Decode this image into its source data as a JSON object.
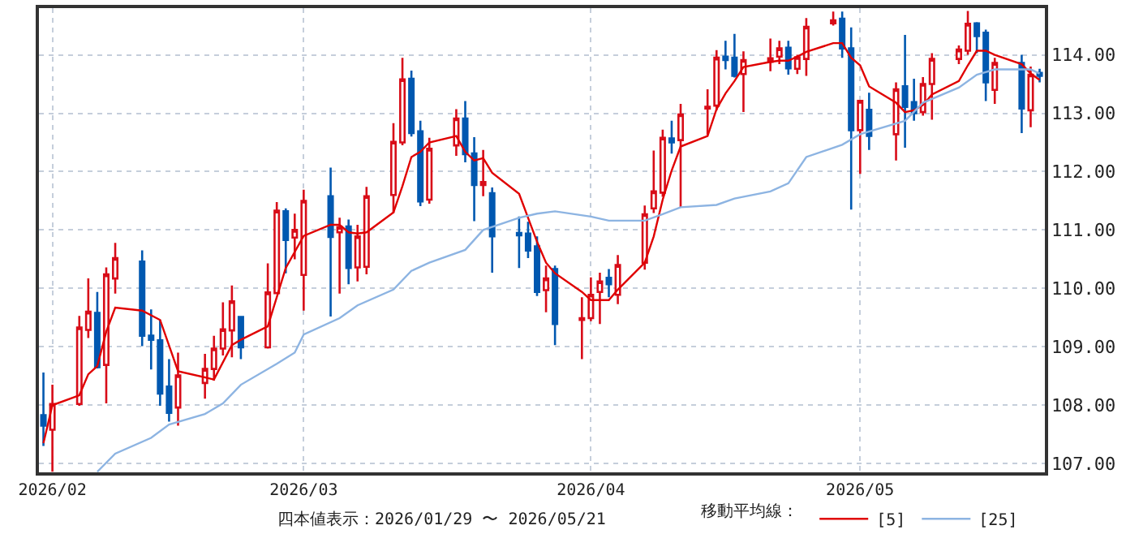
{
  "chart_data": {
    "type": "candlestick",
    "annotations": [
      "四本値表示：2026/01/29 〜 2026/05/21"
    ],
    "legend_title": "移動平均線：",
    "x": [
      "2026-01-29",
      "2026-01-30",
      "2026-02-02",
      "2026-02-03",
      "2026-02-04",
      "2026-02-05",
      "2026-02-06",
      "2026-02-09",
      "2026-02-10",
      "2026-02-11",
      "2026-02-12",
      "2026-02-13",
      "2026-02-16",
      "2026-02-17",
      "2026-02-18",
      "2026-02-19",
      "2026-02-20",
      "2026-02-23",
      "2026-02-24",
      "2026-02-25",
      "2026-02-26",
      "2026-02-27",
      "2026-03-02",
      "2026-03-03",
      "2026-03-04",
      "2026-03-05",
      "2026-03-06",
      "2026-03-09",
      "2026-03-10",
      "2026-03-11",
      "2026-03-12",
      "2026-03-13",
      "2026-03-16",
      "2026-03-17",
      "2026-03-18",
      "2026-03-19",
      "2026-03-20",
      "2026-03-23",
      "2026-03-24",
      "2026-03-25",
      "2026-03-26",
      "2026-03-27",
      "2026-03-30",
      "2026-03-31",
      "2026-04-01",
      "2026-04-02",
      "2026-04-03",
      "2026-04-06",
      "2026-04-07",
      "2026-04-08",
      "2026-04-09",
      "2026-04-10",
      "2026-04-13",
      "2026-04-14",
      "2026-04-15",
      "2026-04-16",
      "2026-04-17",
      "2026-04-20",
      "2026-04-21",
      "2026-04-22",
      "2026-04-23",
      "2026-04-24",
      "2026-04-27",
      "2026-04-28",
      "2026-04-29",
      "2026-04-30",
      "2026-05-01",
      "2026-05-04",
      "2026-05-05",
      "2026-05-06",
      "2026-05-07",
      "2026-05-08",
      "2026-05-11",
      "2026-05-12",
      "2026-05-13",
      "2026-05-14",
      "2026-05-15",
      "2026-05-18",
      "2026-05-19",
      "2026-05-20"
    ],
    "ohlc": [
      [
        107.83,
        108.56,
        107.3,
        107.65
      ],
      [
        107.58,
        108.35,
        106.86,
        108.02
      ],
      [
        108.02,
        109.53,
        107.99,
        109.33
      ],
      [
        109.29,
        110.17,
        109.15,
        109.6
      ],
      [
        109.58,
        109.94,
        108.63,
        108.65
      ],
      [
        108.69,
        110.36,
        108.03,
        110.24
      ],
      [
        110.17,
        110.78,
        109.91,
        110.52
      ],
      [
        110.46,
        110.65,
        109.01,
        109.19
      ],
      [
        109.19,
        109.64,
        108.61,
        109.12
      ],
      [
        109.11,
        109.46,
        107.99,
        108.2
      ],
      [
        108.32,
        108.79,
        107.72,
        107.87
      ],
      [
        107.96,
        108.9,
        107.65,
        108.51
      ],
      [
        108.38,
        108.88,
        108.11,
        108.62
      ],
      [
        108.62,
        109.19,
        108.42,
        108.97
      ],
      [
        108.97,
        109.76,
        108.85,
        109.3
      ],
      [
        109.28,
        110.05,
        108.82,
        109.78
      ],
      [
        109.51,
        109.53,
        108.79,
        108.99
      ],
      [
        108.99,
        110.43,
        108.97,
        109.93
      ],
      [
        109.92,
        111.48,
        109.9,
        111.33
      ],
      [
        111.32,
        111.37,
        110.26,
        110.83
      ],
      [
        110.87,
        111.28,
        110.5,
        111.0
      ],
      [
        110.23,
        111.69,
        109.62,
        111.5
      ],
      [
        111.58,
        112.07,
        109.52,
        110.88
      ],
      [
        110.96,
        111.21,
        109.91,
        111.05
      ],
      [
        111.06,
        111.18,
        110.07,
        110.35
      ],
      [
        110.36,
        111.09,
        110.12,
        110.89
      ],
      [
        110.37,
        111.74,
        110.24,
        111.58
      ],
      [
        111.6,
        112.83,
        111.29,
        112.51
      ],
      [
        112.5,
        113.95,
        112.45,
        113.58
      ],
      [
        113.59,
        113.73,
        112.6,
        112.66
      ],
      [
        112.69,
        112.87,
        111.41,
        111.49
      ],
      [
        111.52,
        112.58,
        111.45,
        112.39
      ],
      [
        112.45,
        113.07,
        112.27,
        112.91
      ],
      [
        112.91,
        113.21,
        112.16,
        112.3
      ],
      [
        112.31,
        112.59,
        111.15,
        111.77
      ],
      [
        111.77,
        112.37,
        111.58,
        111.82
      ],
      [
        111.63,
        111.73,
        110.27,
        110.89
      ],
      [
        110.95,
        111.23,
        110.35,
        110.91
      ],
      [
        110.94,
        111.14,
        110.52,
        110.65
      ],
      [
        110.72,
        110.89,
        109.87,
        109.94
      ],
      [
        109.97,
        110.39,
        109.59,
        110.17
      ],
      [
        110.33,
        110.39,
        109.03,
        109.39
      ],
      [
        109.46,
        109.85,
        108.79,
        109.49
      ],
      [
        109.49,
        110.19,
        109.44,
        109.89
      ],
      [
        109.94,
        110.27,
        109.39,
        110.12
      ],
      [
        110.18,
        110.33,
        109.85,
        110.07
      ],
      [
        109.89,
        110.57,
        109.73,
        110.4
      ],
      [
        110.44,
        111.42,
        110.32,
        111.27
      ],
      [
        111.37,
        112.36,
        111.29,
        111.66
      ],
      [
        111.64,
        112.72,
        111.57,
        112.58
      ],
      [
        112.57,
        112.87,
        112.31,
        112.5
      ],
      [
        112.54,
        113.16,
        111.39,
        112.98
      ],
      [
        113.08,
        113.41,
        112.63,
        113.11
      ],
      [
        113.13,
        114.08,
        113.05,
        113.95
      ],
      [
        113.97,
        114.24,
        113.75,
        113.91
      ],
      [
        113.95,
        114.36,
        113.61,
        113.64
      ],
      [
        113.67,
        114.06,
        113.02,
        113.91
      ],
      [
        113.88,
        114.28,
        113.72,
        113.94
      ],
      [
        113.97,
        114.24,
        113.84,
        114.11
      ],
      [
        114.12,
        114.24,
        113.66,
        113.77
      ],
      [
        113.76,
        114.0,
        113.67,
        113.96
      ],
      [
        113.93,
        114.63,
        113.64,
        114.48
      ],
      [
        114.54,
        114.74,
        114.5,
        114.59
      ],
      [
        114.62,
        114.74,
        113.95,
        114.11
      ],
      [
        114.11,
        114.47,
        111.35,
        112.71
      ],
      [
        112.71,
        113.21,
        111.96,
        113.21
      ],
      [
        113.06,
        113.35,
        112.37,
        112.61
      ],
      [
        112.64,
        113.53,
        112.19,
        113.41
      ],
      [
        113.46,
        114.34,
        112.41,
        113.11
      ],
      [
        113.19,
        113.59,
        112.87,
        113.0
      ],
      [
        113.02,
        113.62,
        112.96,
        113.5
      ],
      [
        113.5,
        114.03,
        112.89,
        113.93
      ],
      [
        113.93,
        114.16,
        113.84,
        114.09
      ],
      [
        114.07,
        114.75,
        114.0,
        114.53
      ],
      [
        114.54,
        114.56,
        114.03,
        114.32
      ],
      [
        114.38,
        114.43,
        113.21,
        113.53
      ],
      [
        113.4,
        113.95,
        113.16,
        113.86
      ],
      [
        113.86,
        114.0,
        112.66,
        113.08
      ],
      [
        113.05,
        113.8,
        112.76,
        113.66
      ],
      [
        113.69,
        113.76,
        113.53,
        113.64
      ]
    ],
    "colors": [
      "#0058b0",
      "#d80c18",
      "#d80c18",
      "#d80c18",
      "#0058b0",
      "#d80c18",
      "#d80c18",
      "#0058b0",
      "#0058b0",
      "#0058b0",
      "#0058b0",
      "#d80c18",
      "#d80c18",
      "#d80c18",
      "#d80c18",
      "#d80c18",
      "#0058b0",
      "#d80c18",
      "#d80c18",
      "#0058b0",
      "#d80c18",
      "#d80c18",
      "#0058b0",
      "#d80c18",
      "#0058b0",
      "#d80c18",
      "#d80c18",
      "#d80c18",
      "#d80c18",
      "#0058b0",
      "#0058b0",
      "#d80c18",
      "#d80c18",
      "#0058b0",
      "#0058b0",
      "#d80c18",
      "#0058b0",
      "#0058b0",
      "#0058b0",
      "#0058b0",
      "#d80c18",
      "#0058b0",
      "#d80c18",
      "#d80c18",
      "#d80c18",
      "#0058b0",
      "#d80c18",
      "#d80c18",
      "#d80c18",
      "#d80c18",
      "#0058b0",
      "#d80c18",
      "#d80c18",
      "#d80c18",
      "#0058b0",
      "#0058b0",
      "#d80c18",
      "#d80c18",
      "#d80c18",
      "#0058b0",
      "#d80c18",
      "#d80c18",
      "#d80c18",
      "#0058b0",
      "#0058b0",
      "#d80c18",
      "#0058b0",
      "#d80c18",
      "#0058b0",
      "#0058b0",
      "#d80c18",
      "#d80c18",
      "#d80c18",
      "#d80c18",
      "#0058b0",
      "#0058b0",
      "#d80c18",
      "#0058b0",
      "#d80c18",
      "#0058b0"
    ],
    "series": [
      {
        "type": "line",
        "name": "[5]",
        "color": "#e00000",
        "x": [
          "2026-01-29",
          "2026-01-30",
          "2026-02-02",
          "2026-02-03",
          "2026-02-04",
          "2026-02-05",
          "2026-02-06",
          "2026-02-09",
          "2026-02-11",
          "2026-02-13",
          "2026-02-17",
          "2026-02-19",
          "2026-02-20",
          "2026-02-23",
          "2026-02-25",
          "2026-02-27",
          "2026-03-02",
          "2026-03-03",
          "2026-03-04",
          "2026-03-05",
          "2026-03-06",
          "2026-03-09",
          "2026-03-10",
          "2026-03-11",
          "2026-03-12",
          "2026-03-13",
          "2026-03-16",
          "2026-03-17",
          "2026-03-18",
          "2026-03-19",
          "2026-03-20",
          "2026-03-23",
          "2026-03-24",
          "2026-03-25",
          "2026-03-26",
          "2026-03-27",
          "2026-03-30",
          "2026-03-31",
          "2026-04-01",
          "2026-04-02",
          "2026-04-03",
          "2026-04-06",
          "2026-04-07",
          "2026-04-08",
          "2026-04-09",
          "2026-04-10",
          "2026-04-13",
          "2026-04-14",
          "2026-04-15",
          "2026-04-16",
          "2026-04-17",
          "2026-04-20",
          "2026-04-21",
          "2026-04-22",
          "2026-04-23",
          "2026-04-24",
          "2026-04-27",
          "2026-04-28",
          "2026-04-29",
          "2026-04-30",
          "2026-05-01",
          "2026-05-04",
          "2026-05-05",
          "2026-05-06",
          "2026-05-07",
          "2026-05-08",
          "2026-05-11",
          "2026-05-12",
          "2026-05-13",
          "2026-05-14",
          "2026-05-15",
          "2026-05-18",
          "2026-05-19",
          "2026-05-20"
        ],
        "values": [
          107.35,
          108.0,
          108.17,
          108.53,
          108.67,
          109.26,
          109.67,
          109.62,
          109.46,
          108.58,
          108.44,
          109.03,
          109.12,
          109.35,
          110.35,
          110.9,
          111.09,
          111.09,
          110.96,
          110.94,
          110.96,
          111.3,
          111.75,
          112.25,
          112.34,
          112.5,
          112.61,
          112.34,
          112.19,
          112.23,
          111.98,
          111.62,
          111.21,
          110.8,
          110.44,
          110.26,
          109.94,
          109.8,
          109.8,
          109.8,
          109.98,
          110.44,
          110.89,
          111.52,
          112.02,
          112.43,
          112.61,
          113.07,
          113.34,
          113.55,
          113.79,
          113.88,
          113.9,
          113.9,
          113.97,
          114.05,
          114.2,
          114.2,
          113.95,
          113.82,
          113.46,
          113.18,
          113.02,
          113.05,
          113.14,
          113.32,
          113.55,
          113.82,
          114.07,
          114.07,
          114.0,
          113.84,
          113.68,
          113.57
        ]
      },
      {
        "type": "line",
        "name": "[25]",
        "color": "#8db4e2",
        "x": [
          "2026-02-04",
          "2026-02-06",
          "2026-02-10",
          "2026-02-12",
          "2026-02-16",
          "2026-02-18",
          "2026-02-20",
          "2026-02-24",
          "2026-02-26",
          "2026-02-27",
          "2026-03-03",
          "2026-03-05",
          "2026-03-09",
          "2026-03-11",
          "2026-03-13",
          "2026-03-17",
          "2026-03-19",
          "2026-03-23",
          "2026-03-25",
          "2026-03-27",
          "2026-03-31",
          "2026-04-02",
          "2026-04-06",
          "2026-04-08",
          "2026-04-10",
          "2026-04-14",
          "2026-04-16",
          "2026-04-20",
          "2026-04-22",
          "2026-04-24",
          "2026-04-28",
          "2026-04-30",
          "2026-05-05",
          "2026-05-07",
          "2026-05-11",
          "2026-05-13",
          "2026-05-15",
          "2026-05-19",
          "2026-05-20"
        ],
        "values": [
          106.86,
          107.17,
          107.44,
          107.67,
          107.85,
          108.03,
          108.35,
          108.71,
          108.9,
          109.21,
          109.49,
          109.71,
          109.98,
          110.3,
          110.44,
          110.66,
          111.0,
          111.21,
          111.28,
          111.32,
          111.23,
          111.16,
          111.16,
          111.27,
          111.39,
          111.43,
          111.54,
          111.66,
          111.8,
          112.25,
          112.46,
          112.64,
          112.87,
          113.18,
          113.44,
          113.66,
          113.75,
          113.75,
          113.68
        ]
      }
    ],
    "xlim": [
      "2026-01-28T12:00",
      "2026-05-20T14:00"
    ],
    "xticks": [
      {
        "value": "2026-01-30",
        "label": "2026/02"
      },
      {
        "value": "2026-02-27",
        "label": "2026/03"
      },
      {
        "value": "2026-03-31",
        "label": "2026/04"
      },
      {
        "value": "2026-04-30",
        "label": "2026/05"
      }
    ],
    "ylim": [
      106.85,
      114.8
    ],
    "yticks": [
      {
        "value": 107,
        "label": "107.00"
      },
      {
        "value": 108,
        "label": "108.00"
      },
      {
        "value": 109,
        "label": "109.00"
      },
      {
        "value": 110,
        "label": "110.00"
      },
      {
        "value": 111,
        "label": "111.00"
      },
      {
        "value": 112,
        "label": "112.00"
      },
      {
        "value": 113,
        "label": "113.00"
      },
      {
        "value": 114,
        "label": "114.00"
      }
    ],
    "grid": true,
    "legend": "bottom"
  }
}
